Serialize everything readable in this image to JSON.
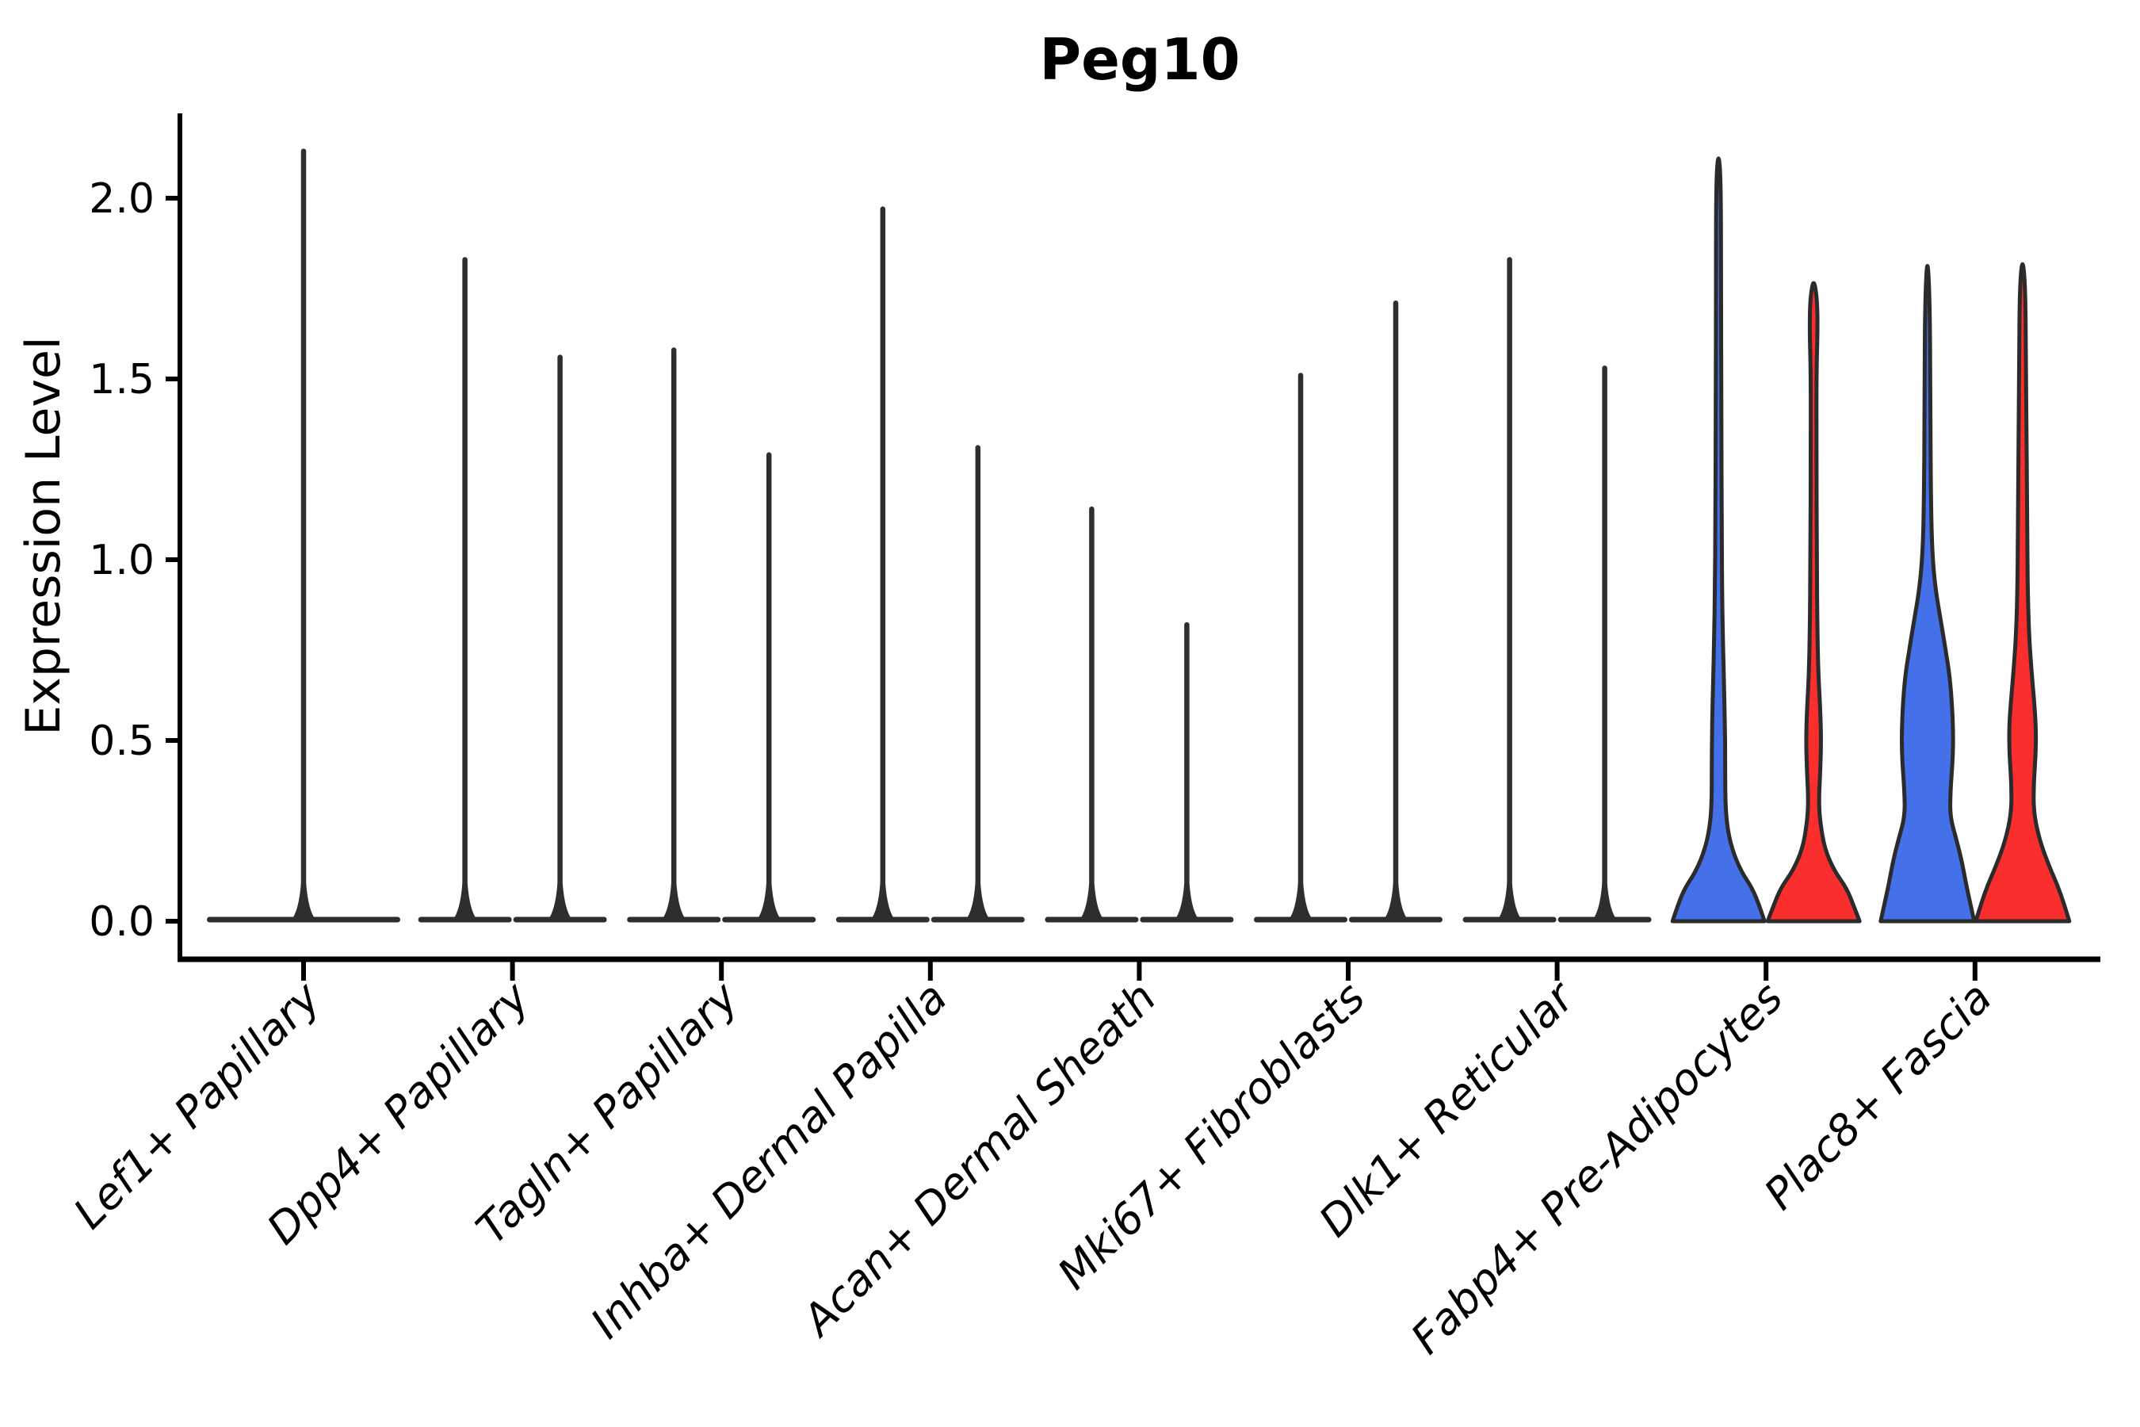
{
  "figure": {
    "title": "Peg10",
    "background_color": "#ffffff",
    "axis_color": "#000000",
    "violin_outline_color": "#2B2B2B",
    "thin_violin_color": "#2E2E2E"
  },
  "chart_data": {
    "type": "violin",
    "title": "Peg10",
    "xlabel": "",
    "ylabel": "Expression Level",
    "ylim": [
      -0.11,
      2.24
    ],
    "yticks": [
      0.0,
      0.5,
      1.0,
      1.5,
      2.0
    ],
    "ytick_labels": [
      "0.0",
      "0.5",
      "1.0",
      "1.5",
      "2.0"
    ],
    "grid": false,
    "legend_position": "none",
    "x_tick_rotation": 45,
    "x_tick_style": "italic",
    "categories": [
      "Lef1+ Papillary",
      "Dpp4+ Papillary",
      "Tagln+ Papillary",
      "Inhba+ Dermal Papilla",
      "Acan+ Dermal Sheath",
      "Mki67+ Fibroblasts",
      "Dlk1+ Reticular",
      "Fabp4+ Pre-Adipocytes",
      "Plac8+ Fascia"
    ],
    "groups": [
      {
        "name": "group-1",
        "color": "#4470E9"
      },
      {
        "name": "group-2",
        "color": "#FB2E2E"
      }
    ],
    "violins": [
      {
        "category": "Lef1+ Papillary",
        "style": "thin-single",
        "max_expression": [
          2.13
        ]
      },
      {
        "category": "Dpp4+ Papillary",
        "style": "thin-pair",
        "max_expression": [
          1.83,
          1.56
        ]
      },
      {
        "category": "Tagln+ Papillary",
        "style": "thin-pair",
        "max_expression": [
          1.58,
          1.29
        ]
      },
      {
        "category": "Inhba+ Dermal Papilla",
        "style": "thin-pair",
        "max_expression": [
          1.97,
          1.31
        ]
      },
      {
        "category": "Acan+ Dermal Sheath",
        "style": "thin-pair",
        "max_expression": [
          1.14,
          0.82
        ]
      },
      {
        "category": "Mki67+ Fibroblasts",
        "style": "thin-pair",
        "max_expression": [
          1.51,
          1.71
        ]
      },
      {
        "category": "Dlk1+ Reticular",
        "style": "thin-pair",
        "max_expression": [
          1.83,
          1.53
        ]
      },
      {
        "category": "Fabp4+ Pre-Adipocytes",
        "style": "filled-pair",
        "max_expression": [
          2.13,
          1.78
        ],
        "density_profiles": [
          [
            [
              0,
              58
            ],
            [
              0.04,
              52
            ],
            [
              0.09,
              43
            ],
            [
              0.14,
              28
            ],
            [
              0.2,
              17
            ],
            [
              0.26,
              11
            ],
            [
              0.33,
              8.5
            ],
            [
              0.45,
              8.5
            ],
            [
              0.55,
              8
            ],
            [
              0.65,
              7
            ],
            [
              0.78,
              5.5
            ],
            [
              0.92,
              4.5
            ],
            [
              1.1,
              4
            ],
            [
              1.4,
              3.5
            ],
            [
              1.75,
              3.2
            ],
            [
              2.05,
              3
            ],
            [
              2.13,
              0
            ]
          ],
          [
            [
              0,
              58
            ],
            [
              0.04,
              51
            ],
            [
              0.09,
              42
            ],
            [
              0.14,
              26
            ],
            [
              0.2,
              14
            ],
            [
              0.27,
              8.5
            ],
            [
              0.33,
              6.5
            ],
            [
              0.42,
              8.5
            ],
            [
              0.5,
              9.5
            ],
            [
              0.58,
              8.5
            ],
            [
              0.68,
              6
            ],
            [
              0.8,
              4.8
            ],
            [
              1.0,
              4
            ],
            [
              1.3,
              3.6
            ],
            [
              1.52,
              3.6
            ],
            [
              1.63,
              5
            ],
            [
              1.72,
              4.5
            ],
            [
              1.78,
              0
            ]
          ]
        ]
      },
      {
        "category": "Plac8+ Fascia",
        "style": "filled-pair",
        "max_expression": [
          1.85,
          1.84
        ],
        "density_profiles": [
          [
            [
              0,
              59
            ],
            [
              0.05,
              54
            ],
            [
              0.1,
              49
            ],
            [
              0.17,
              43
            ],
            [
              0.23,
              36
            ],
            [
              0.29,
              28.5
            ],
            [
              0.36,
              29
            ],
            [
              0.45,
              32
            ],
            [
              0.52,
              32.5
            ],
            [
              0.6,
              31
            ],
            [
              0.68,
              28
            ],
            [
              0.75,
              23
            ],
            [
              0.83,
              17
            ],
            [
              0.92,
              10
            ],
            [
              1.02,
              6
            ],
            [
              1.15,
              4.5
            ],
            [
              1.4,
              3.6
            ],
            [
              1.7,
              3.2
            ],
            [
              1.85,
              0
            ]
          ],
          [
            [
              0,
              59
            ],
            [
              0.05,
              52
            ],
            [
              0.1,
              44
            ],
            [
              0.15,
              34
            ],
            [
              0.22,
              22
            ],
            [
              0.3,
              14
            ],
            [
              0.38,
              14
            ],
            [
              0.46,
              16.5
            ],
            [
              0.53,
              17
            ],
            [
              0.6,
              15
            ],
            [
              0.7,
              11
            ],
            [
              0.8,
              8
            ],
            [
              0.92,
              6.5
            ],
            [
              1.05,
              6
            ],
            [
              1.2,
              5.5
            ],
            [
              1.35,
              5
            ],
            [
              1.55,
              4.2
            ],
            [
              1.75,
              3.6
            ],
            [
              1.84,
              0
            ]
          ]
        ]
      }
    ]
  }
}
